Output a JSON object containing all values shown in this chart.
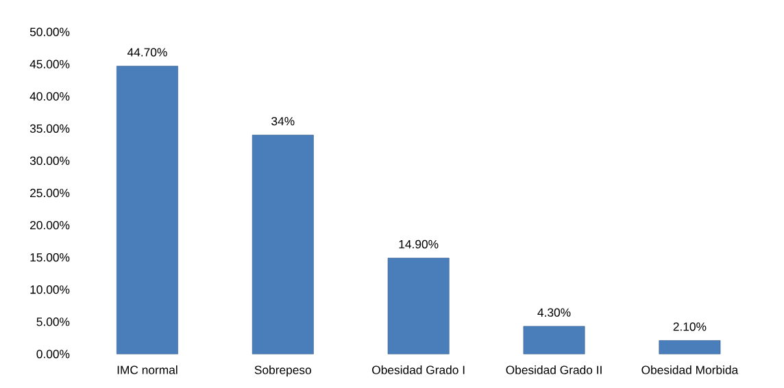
{
  "chart_data": {
    "type": "bar",
    "categories": [
      "IMC normal",
      "Sobrepeso",
      "Obesidad Grado I",
      "Obesidad Grado II",
      "Obesidad Morbida"
    ],
    "values": [
      44.7,
      34,
      14.9,
      4.3,
      2.1
    ],
    "value_labels": [
      "44.70%",
      "34%",
      "14.90%",
      "4.30%",
      "2.10%"
    ],
    "color": "#4a7ebb",
    "ylim": [
      0,
      50
    ],
    "yticks": [
      {
        "value": 0,
        "label": "0.00%"
      },
      {
        "value": 5,
        "label": "5.00%"
      },
      {
        "value": 10,
        "label": "10.00%"
      },
      {
        "value": 15,
        "label": "15.00%"
      },
      {
        "value": 20,
        "label": "20.00%"
      },
      {
        "value": 25,
        "label": "25.00%"
      },
      {
        "value": 30,
        "label": "30.00%"
      },
      {
        "value": 35,
        "label": "35.00%"
      },
      {
        "value": 40,
        "label": "40.00%"
      },
      {
        "value": 45,
        "label": "45.00%"
      },
      {
        "value": 50,
        "label": "50.00%"
      }
    ],
    "grid": false
  }
}
